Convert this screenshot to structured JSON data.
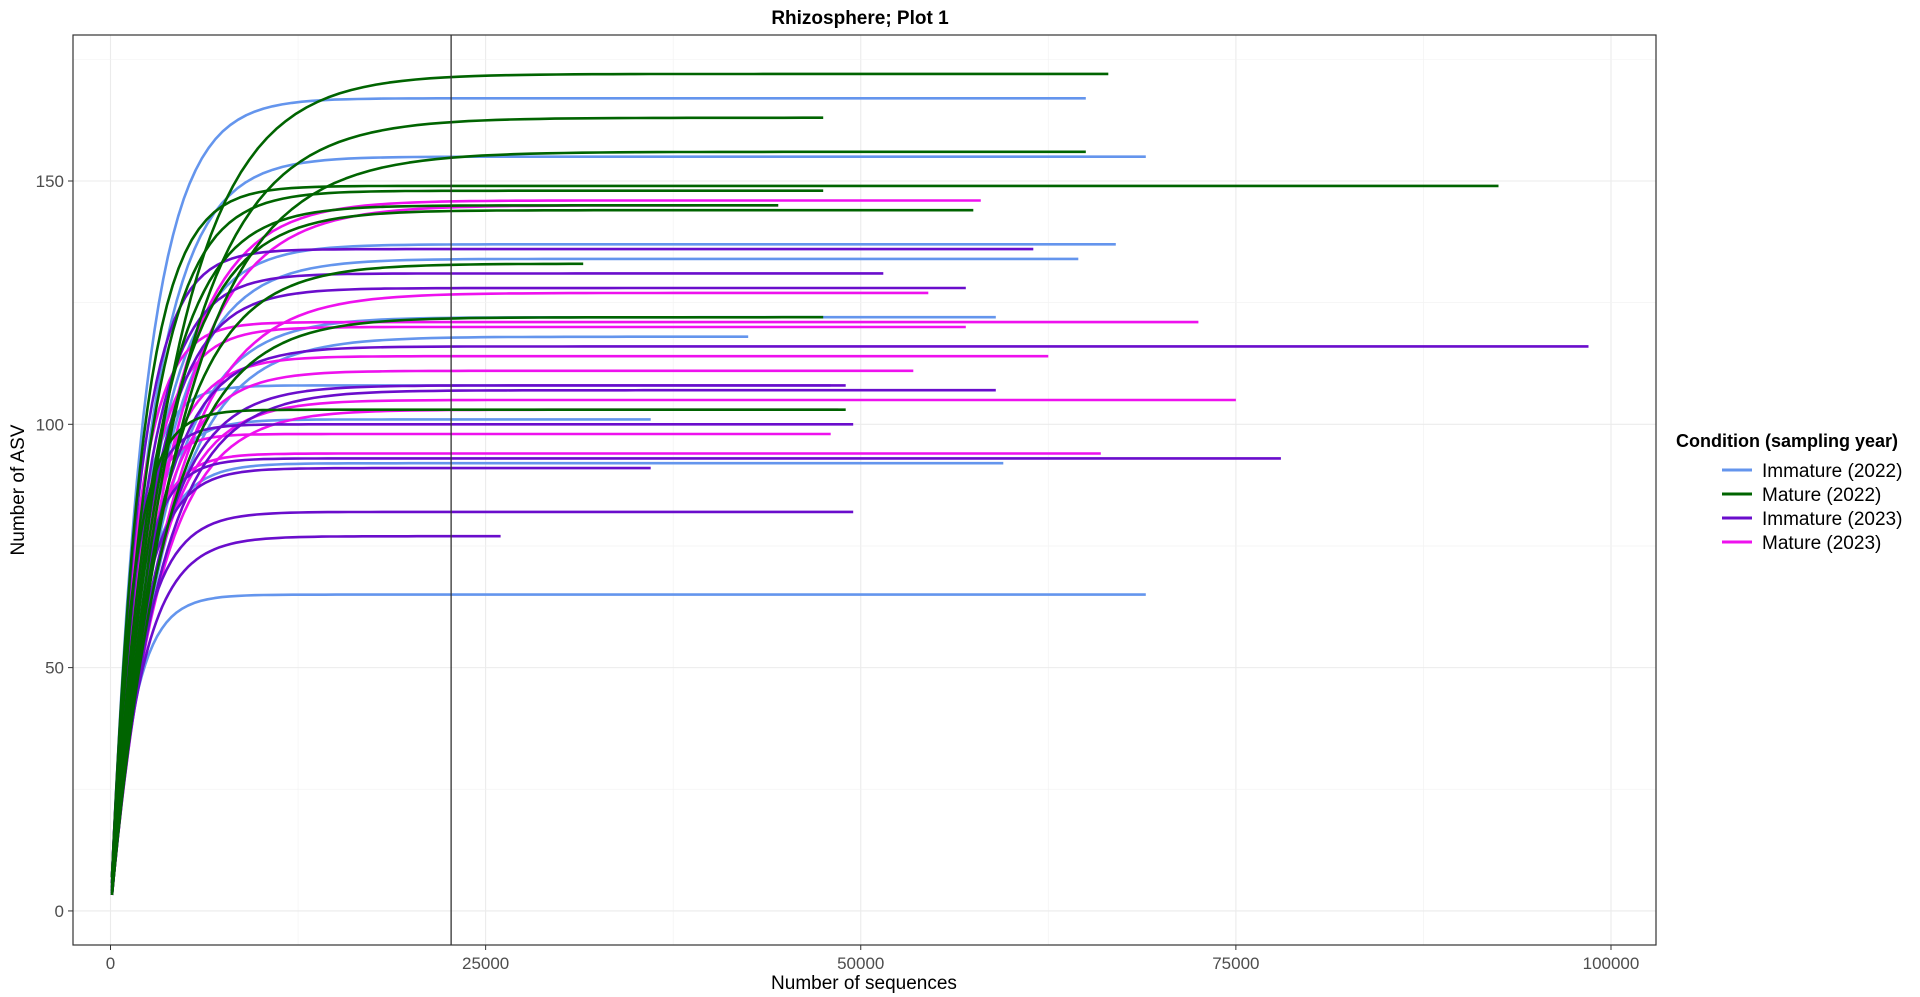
{
  "chart_data": {
    "type": "line",
    "title": "Rhizosphere; Plot 1",
    "xlabel": "Number of sequences",
    "ylabel": "Number of ASV",
    "xlim": [
      -2500,
      103000
    ],
    "ylim": [
      -7,
      180
    ],
    "x_ticks": [
      0,
      25000,
      50000,
      75000,
      100000
    ],
    "x_tick_labels": [
      "0",
      "25000",
      "50000",
      "75000",
      "100000"
    ],
    "y_ticks": [
      0,
      50,
      100,
      150
    ],
    "y_tick_labels": [
      "0",
      "50",
      "100",
      "150"
    ],
    "grid": true,
    "reference_line_x": 22700,
    "legend": {
      "title": "Condition (sampling year)",
      "position": "right",
      "entries": [
        {
          "label": "Immature (2022)",
          "color": "#6495ED"
        },
        {
          "label": "Mature (2022)",
          "color": "#006400"
        },
        {
          "label": "Immature (2023)",
          "color": "#6A0DCC"
        },
        {
          "label": "Mature (2023)",
          "color": "#EE11EE"
        }
      ]
    },
    "series": [
      {
        "group": 0,
        "color": "#6495ED",
        "curves": [
          [
            167,
            65000
          ],
          [
            155,
            69000
          ],
          [
            137,
            67000
          ],
          [
            134,
            64500
          ],
          [
            122,
            59000
          ],
          [
            118,
            42500
          ],
          [
            108,
            48000
          ],
          [
            101,
            36000
          ],
          [
            92,
            59500
          ],
          [
            65,
            69000
          ]
        ]
      },
      {
        "group": 1,
        "color": "#006400",
        "curves": [
          [
            172,
            66500
          ],
          [
            163,
            47500
          ],
          [
            156,
            65000
          ],
          [
            149,
            92500
          ],
          [
            148,
            47500
          ],
          [
            145,
            44500
          ],
          [
            144,
            57500
          ],
          [
            133,
            31500
          ],
          [
            122,
            47500
          ],
          [
            103,
            49000
          ]
        ]
      },
      {
        "group": 2,
        "color": "#6A0DCC",
        "curves": [
          [
            136,
            61500
          ],
          [
            131,
            51500
          ],
          [
            128,
            57000
          ],
          [
            116,
            98500
          ],
          [
            108,
            49000
          ],
          [
            107,
            59000
          ],
          [
            100,
            49500
          ],
          [
            93,
            78000
          ],
          [
            91,
            36000
          ],
          [
            82,
            49500
          ],
          [
            77,
            26000
          ]
        ]
      },
      {
        "group": 3,
        "color": "#EE11EE",
        "curves": [
          [
            146,
            58000
          ],
          [
            145,
            44500
          ],
          [
            127,
            54500
          ],
          [
            121,
            72500
          ],
          [
            120,
            57000
          ],
          [
            114,
            62500
          ],
          [
            111,
            53500
          ],
          [
            105,
            75000
          ],
          [
            103,
            48500
          ],
          [
            98,
            48000
          ],
          [
            94,
            66000
          ]
        ]
      }
    ]
  }
}
